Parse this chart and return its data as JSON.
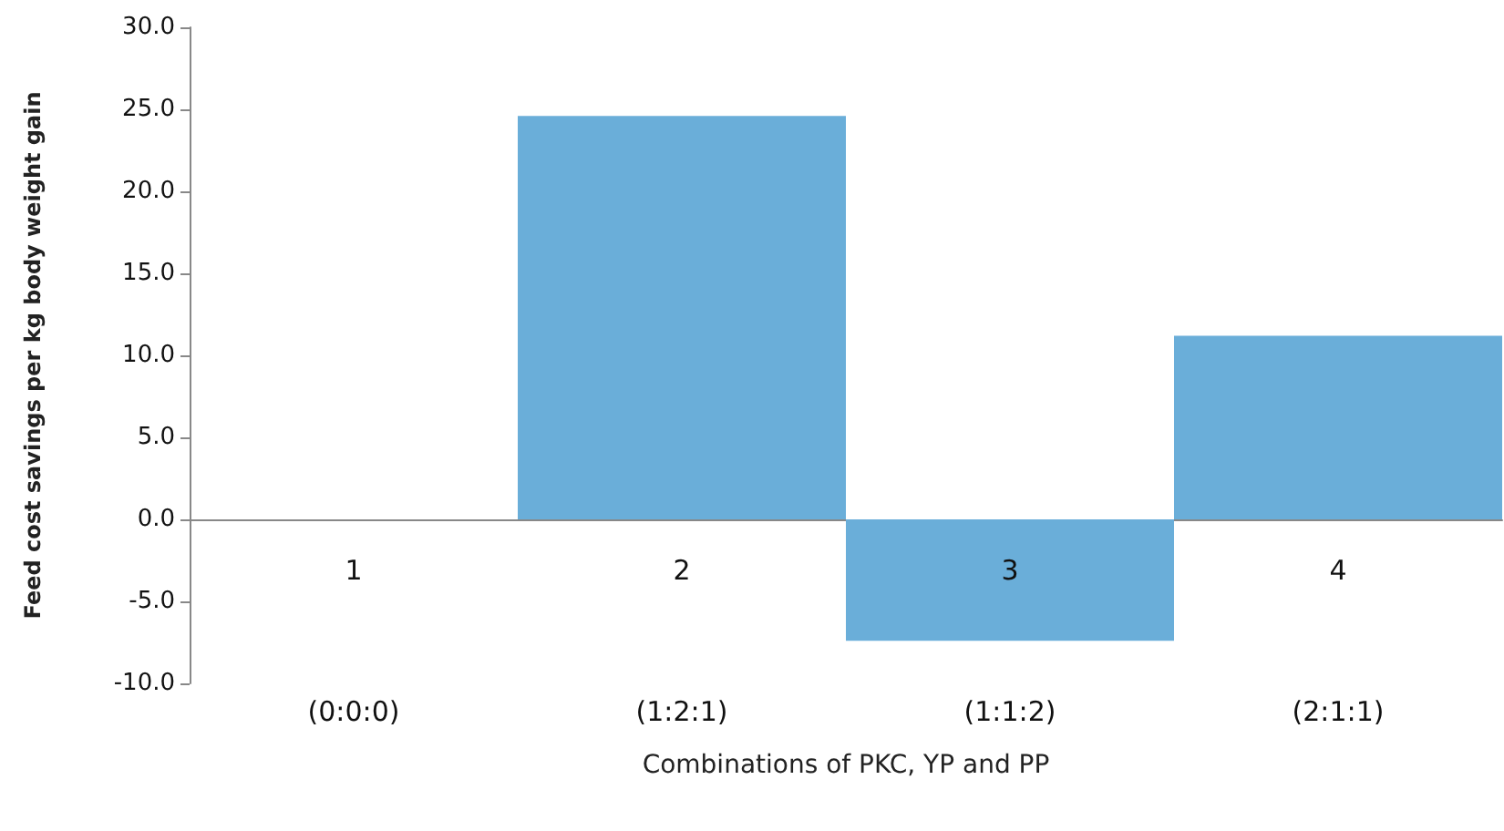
{
  "chart_data": {
    "type": "bar",
    "xlabel": "Combinations of PKC, YP and PP",
    "ylabel": "Feed cost savings per kg body weight gain",
    "categories": [
      "(0:0:0)",
      "(1:2:1)",
      "(1:1:2)",
      "(2:1:1)"
    ],
    "values": [
      0,
      24.6,
      -7.4,
      11.2
    ],
    "color": "#6aaed9",
    "ylim": [
      -10,
      30
    ],
    "yticks": [
      {
        "value": -10,
        "label": "-10.0"
      },
      {
        "value": -5,
        "label": "-5.0"
      },
      {
        "value": 0,
        "label": "0.0"
      },
      {
        "value": 5,
        "label": "5.0"
      },
      {
        "value": 10,
        "label": "10.0"
      },
      {
        "value": 15,
        "label": "15.0"
      },
      {
        "value": 20,
        "label": "20.0"
      },
      {
        "value": 25,
        "label": "25.0"
      },
      {
        "value": 30,
        "label": "30.0"
      }
    ],
    "annotations": [
      "1",
      "2",
      "3",
      "4"
    ]
  }
}
